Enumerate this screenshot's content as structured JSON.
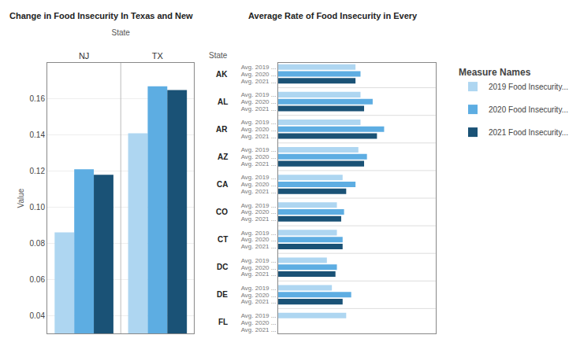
{
  "chart_data": [
    {
      "type": "bar",
      "title": "Change in Food Insecurity In Texas and New",
      "xlabel": "State",
      "ylabel": "Value",
      "categories": [
        "NJ",
        "TX"
      ],
      "series": [
        {
          "name": "2019 Food Insecurity...",
          "color": "#AED6F1",
          "values": [
            0.086,
            0.141
          ]
        },
        {
          "name": "2020 Food Insecurity...",
          "color": "#5DADE2",
          "values": [
            0.121,
            0.167
          ]
        },
        {
          "name": "2021 Food Insecurity...",
          "color": "#1A5276",
          "values": [
            0.118,
            0.165
          ]
        }
      ],
      "ylim": [
        0.03,
        0.18
      ],
      "yticks": [
        0.04,
        0.06,
        0.08,
        {
          "value": 0.1,
          "label": "0.10"
        },
        0.12,
        0.14,
        0.16
      ],
      "grid": true,
      "legend": "upper right",
      "legend_title": "Measure Names"
    },
    {
      "type": "bar",
      "orientation": "horizontal",
      "title": "Average Rate of Food Insecurity in Every",
      "ylabel": "State",
      "categories": [
        "AK",
        "AL",
        "AR",
        "AZ",
        "CA",
        "CO",
        "CT",
        "DC",
        "DE",
        "FL"
      ],
      "subcategories": [
        "Avg. 2019 ...",
        "Avg. 2020 ...",
        "Avg. 2021 ..."
      ],
      "series": [
        {
          "name": "2019 Food Insecurity...",
          "color": "#AED6F1",
          "values": [
            0.108,
            0.115,
            0.115,
            0.112,
            0.09,
            0.082,
            0.082,
            0.068,
            0.075,
            0.095
          ]
        },
        {
          "name": "2020 Food Insecurity...",
          "color": "#5DADE2",
          "values": [
            0.115,
            0.132,
            0.148,
            0.124,
            0.108,
            0.092,
            0.09,
            0.082,
            0.102,
            0.0
          ]
        },
        {
          "name": "2021 Food Insecurity...",
          "color": "#1A5276",
          "values": [
            0.108,
            0.12,
            0.138,
            0.12,
            0.095,
            0.088,
            0.09,
            0.08,
            0.09,
            0.0
          ]
        }
      ],
      "xlim": [
        0,
        0.22
      ],
      "tick_labels": "y",
      "grid": false
    }
  ]
}
